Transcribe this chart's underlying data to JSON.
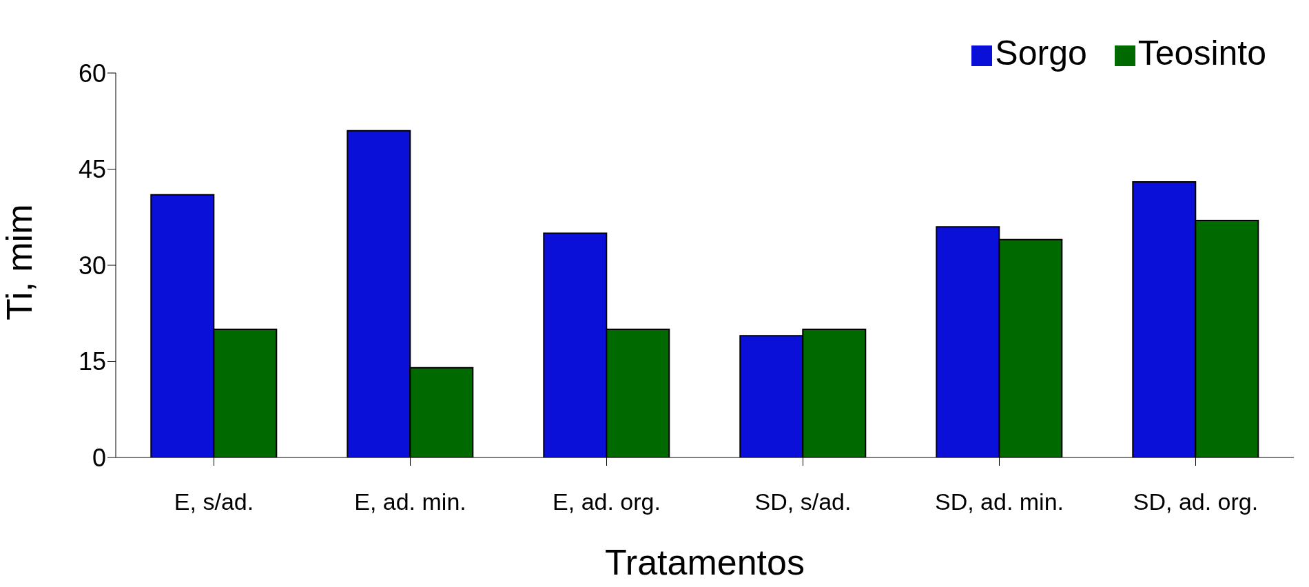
{
  "chart_data": {
    "type": "bar",
    "xlabel": "Tratamentos",
    "ylabel": "Ti, mim",
    "categories": [
      "E, s/ad.",
      "E, ad. min.",
      "E, ad. org.",
      "SD, s/ad.",
      "SD, ad. min.",
      "SD, ad. org."
    ],
    "series": [
      {
        "name": "Sorgo",
        "color": "#0a10d8",
        "values": [
          41,
          51,
          35,
          19,
          36,
          43
        ]
      },
      {
        "name": "Teosinto",
        "color": "#006a00",
        "values": [
          20,
          14,
          20,
          20,
          34,
          37
        ]
      }
    ],
    "ylim": [
      0,
      60
    ],
    "yticks": [
      0,
      15,
      30,
      45,
      60
    ],
    "grid": false,
    "legend": "top right"
  }
}
